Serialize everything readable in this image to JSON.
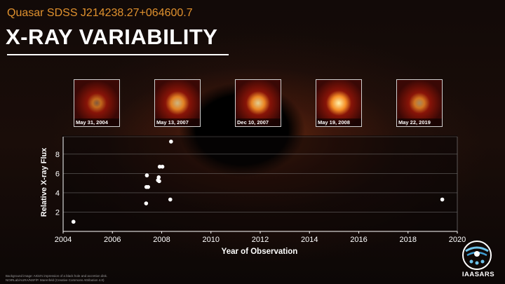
{
  "header": {
    "subtitle": "Quasar SDSS J214238.27+064600.7",
    "title": "X-RAY VARIABILITY"
  },
  "thumbnails": [
    {
      "label": "May 31, 2004",
      "brightness": 0.35
    },
    {
      "label": "May 13, 2007",
      "brightness": 0.75
    },
    {
      "label": "Dec 10, 2007",
      "brightness": 0.85
    },
    {
      "label": "May 19, 2008",
      "brightness": 1.0
    },
    {
      "label": "May 22, 2019",
      "brightness": 0.55
    }
  ],
  "chart_data": {
    "type": "scatter",
    "xlabel": "Year of Observation",
    "ylabel": "Relative X-ray Flux",
    "xlim": [
      2004,
      2020
    ],
    "ylim": [
      0,
      9.8
    ],
    "xticks": [
      2004,
      2006,
      2008,
      2010,
      2012,
      2014,
      2016,
      2018,
      2020
    ],
    "yticks": [
      2,
      4,
      6,
      8
    ],
    "grid": "horizontal",
    "series": [
      {
        "color": "#ffffff",
        "points": [
          {
            "x": 2004.42,
            "y": 1.0
          },
          {
            "x": 2007.37,
            "y": 2.9
          },
          {
            "x": 2007.38,
            "y": 4.6
          },
          {
            "x": 2007.45,
            "y": 4.6
          },
          {
            "x": 2007.4,
            "y": 5.8
          },
          {
            "x": 2007.85,
            "y": 5.3
          },
          {
            "x": 2007.88,
            "y": 5.6
          },
          {
            "x": 2007.9,
            "y": 5.2
          },
          {
            "x": 2007.92,
            "y": 6.7
          },
          {
            "x": 2008.03,
            "y": 6.7
          },
          {
            "x": 2008.38,
            "y": 9.3
          },
          {
            "x": 2008.35,
            "y": 3.3
          },
          {
            "x": 2019.39,
            "y": 3.3
          }
        ]
      }
    ]
  },
  "footnote": "Background image: Artist's impression of a black hole and accretion disk. NOIRLab/AURA/NSF/P. Marenfeld (Creative Commons Attribution 4.0)",
  "logo": {
    "text": "IAASARS"
  }
}
